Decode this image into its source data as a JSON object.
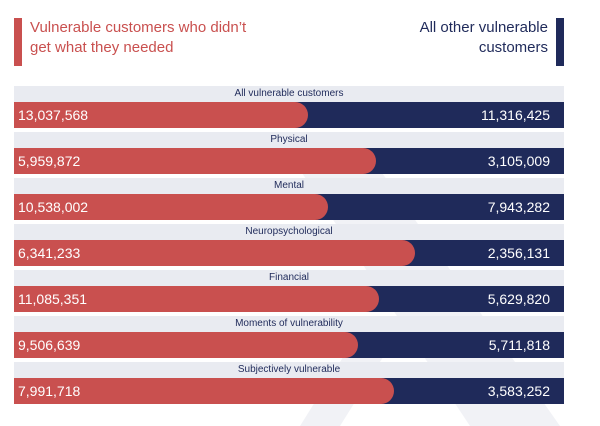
{
  "legend": {
    "left_label": "Vulnerable customers who didn’t get what they needed",
    "right_label": "All other vulnerable customers",
    "left_color": "#c9504f",
    "right_color": "#1f2a5a"
  },
  "chart_data": {
    "type": "bar",
    "stacked": true,
    "orientation": "horizontal",
    "categories": [
      "All  vulnerable customers",
      "Physical",
      "Mental",
      "Neuropsychological",
      "Financial",
      "Moments of vulnerability",
      "Subjectively vulnerable"
    ],
    "series": [
      {
        "name": "Vulnerable customers who didn’t get what they needed",
        "values": [
          13037568,
          5959872,
          10538002,
          6341233,
          11085351,
          9506639,
          7991718
        ],
        "labels": [
          "13,037,568",
          "5,959,872",
          "10,538,002",
          "6,341,233",
          "11,085,351",
          "9,506,639",
          "7,991,718"
        ]
      },
      {
        "name": "All other vulnerable customers",
        "values": [
          11316425,
          3105009,
          7943282,
          2356131,
          5629820,
          5711818,
          3583252
        ],
        "labels": [
          "11,316,425",
          "3,105,009",
          "7,943,282",
          "2,356,131",
          "5,629,820",
          "5,711,818",
          "3,583,252"
        ]
      }
    ]
  }
}
